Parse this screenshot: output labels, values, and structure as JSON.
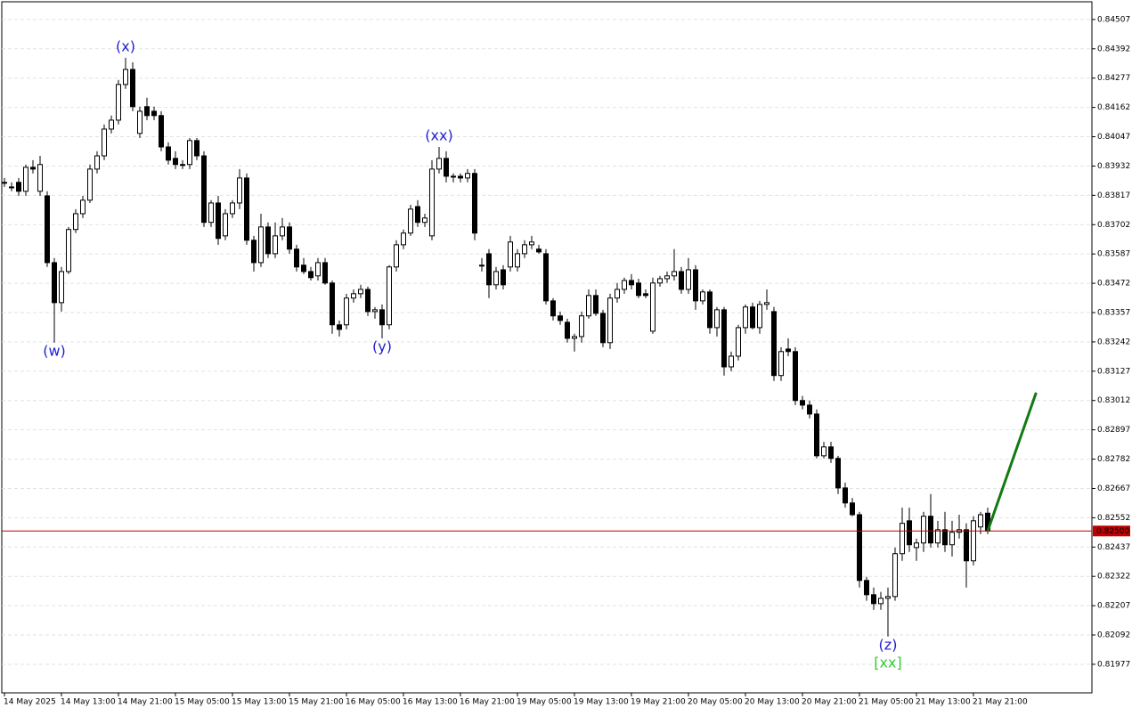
{
  "chart_data": {
    "type": "candlestick",
    "ylim": [
      0.81865,
      0.84573
    ],
    "yticks": [
      0.84507,
      0.84392,
      0.84277,
      0.84162,
      0.84047,
      0.83932,
      0.83817,
      0.83702,
      0.83587,
      0.83472,
      0.83357,
      0.83242,
      0.83127,
      0.83012,
      0.82897,
      0.82782,
      0.82667,
      0.82552,
      0.82437,
      0.82322,
      0.82207,
      0.82092,
      0.81977
    ],
    "grid": true,
    "up_color": "#ffffff",
    "down_color": "#000000",
    "categories": [
      "14 May 2025",
      null,
      null,
      null,
      null,
      null,
      null,
      null,
      "14 May 13:00",
      null,
      null,
      null,
      null,
      null,
      null,
      null,
      "14 May 21:00",
      null,
      null,
      null,
      null,
      null,
      null,
      null,
      "15 May 05:00",
      null,
      null,
      null,
      null,
      null,
      null,
      null,
      "15 May 13:00",
      null,
      null,
      null,
      null,
      null,
      null,
      null,
      "15 May 21:00",
      null,
      null,
      null,
      null,
      null,
      null,
      null,
      "16 May 05:00",
      null,
      null,
      null,
      null,
      null,
      null,
      null,
      "16 May 13:00",
      null,
      null,
      null,
      null,
      null,
      null,
      null,
      "16 May 21:00",
      null,
      null,
      null,
      null,
      null,
      null,
      null,
      "19 May 05:00",
      null,
      null,
      null,
      null,
      null,
      null,
      null,
      "19 May 13:00",
      null,
      null,
      null,
      null,
      null,
      null,
      null,
      "19 May 21:00",
      null,
      null,
      null,
      null,
      null,
      null,
      null,
      "20 May 05:00",
      null,
      null,
      null,
      null,
      null,
      null,
      null,
      "20 May 13:00",
      null,
      null,
      null,
      null,
      null,
      null,
      null,
      "20 May 21:00",
      null,
      null,
      null,
      null,
      null,
      null,
      null,
      "21 May 05:00",
      null,
      null,
      null,
      null,
      null,
      null,
      null,
      "21 May 13:00",
      null,
      null,
      null,
      null,
      null,
      null,
      null,
      "21 May 21:00",
      null,
      null
    ],
    "ohlc": [
      [
        0.83868,
        0.83885,
        0.8385,
        0.83868
      ],
      [
        0.8385,
        0.83868,
        0.83833,
        0.8385
      ],
      [
        0.83868,
        0.83885,
        0.83815,
        0.83833
      ],
      [
        0.83833,
        0.83938,
        0.83815,
        0.83927
      ],
      [
        0.83927,
        0.83955,
        0.83903,
        0.8392
      ],
      [
        0.83833,
        0.83972,
        0.83815,
        0.83938
      ],
      [
        0.83815,
        0.83833,
        0.83536,
        0.83553
      ],
      [
        0.83553,
        0.83571,
        0.83239,
        0.83396
      ],
      [
        0.83396,
        0.83536,
        0.83361,
        0.83518
      ],
      [
        0.83518,
        0.83693,
        0.83508,
        0.83683
      ],
      [
        0.83683,
        0.83763,
        0.83669,
        0.83745
      ],
      [
        0.83745,
        0.83815,
        0.83728,
        0.83798
      ],
      [
        0.83798,
        0.83938,
        0.83787,
        0.8392
      ],
      [
        0.8392,
        0.8399,
        0.83903,
        0.83972
      ],
      [
        0.83972,
        0.84095,
        0.83955,
        0.84077
      ],
      [
        0.84077,
        0.8413,
        0.8406,
        0.84112
      ],
      [
        0.84112,
        0.8427,
        0.84095,
        0.84252
      ],
      [
        0.84252,
        0.84357,
        0.84235,
        0.84311
      ],
      [
        0.84311,
        0.84339,
        0.84147,
        0.84165
      ],
      [
        0.8406,
        0.84165,
        0.84042,
        0.84147
      ],
      [
        0.84165,
        0.842,
        0.84112,
        0.8413
      ],
      [
        0.84147,
        0.84165,
        0.84112,
        0.8413
      ],
      [
        0.8413,
        0.84147,
        0.8399,
        0.84007
      ],
      [
        0.84007,
        0.84025,
        0.83938,
        0.83955
      ],
      [
        0.83962,
        0.8399,
        0.8392,
        0.83938
      ],
      [
        0.83938,
        0.83955,
        0.8392,
        0.83938
      ],
      [
        0.83938,
        0.84042,
        0.8392,
        0.84032
      ],
      [
        0.84032,
        0.84042,
        0.83955,
        0.83972
      ],
      [
        0.83972,
        0.8399,
        0.83693,
        0.83711
      ],
      [
        0.83711,
        0.83798,
        0.83693,
        0.83787
      ],
      [
        0.83787,
        0.83815,
        0.83623,
        0.83648
      ],
      [
        0.83658,
        0.83763,
        0.83641,
        0.83745
      ],
      [
        0.83745,
        0.83798,
        0.83728,
        0.83787
      ],
      [
        0.83787,
        0.8392,
        0.83763,
        0.83885
      ],
      [
        0.83885,
        0.83903,
        0.83623,
        0.83641
      ],
      [
        0.83641,
        0.83658,
        0.83518,
        0.83553
      ],
      [
        0.83553,
        0.83745,
        0.83536,
        0.83693
      ],
      [
        0.83693,
        0.83711,
        0.83571,
        0.83588
      ],
      [
        0.83588,
        0.83711,
        0.83571,
        0.83658
      ],
      [
        0.83658,
        0.83728,
        0.83641,
        0.83693
      ],
      [
        0.83693,
        0.83711,
        0.83588,
        0.83606
      ],
      [
        0.83606,
        0.83623,
        0.83518,
        0.83536
      ],
      [
        0.83543,
        0.83571,
        0.83508,
        0.83518
      ],
      [
        0.83518,
        0.83536,
        0.83483,
        0.83494
      ],
      [
        0.83501,
        0.83571,
        0.83483,
        0.83553
      ],
      [
        0.83553,
        0.83571,
        0.83466,
        0.83473
      ],
      [
        0.83473,
        0.83483,
        0.83274,
        0.83309
      ],
      [
        0.83309,
        0.83326,
        0.83263,
        0.83291
      ],
      [
        0.83309,
        0.83431,
        0.83291,
        0.83414
      ],
      [
        0.83414,
        0.83448,
        0.83396,
        0.83431
      ],
      [
        0.83431,
        0.83466,
        0.83414,
        0.83448
      ],
      [
        0.83448,
        0.83459,
        0.83344,
        0.83361
      ],
      [
        0.83361,
        0.83379,
        0.83333,
        0.83368
      ],
      [
        0.83368,
        0.83389,
        0.83256,
        0.83309
      ],
      [
        0.83309,
        0.83543,
        0.83291,
        0.83536
      ],
      [
        0.83536,
        0.83641,
        0.83518,
        0.83623
      ],
      [
        0.83623,
        0.83683,
        0.83606,
        0.83669
      ],
      [
        0.83669,
        0.8378,
        0.83658,
        0.83763
      ],
      [
        0.83773,
        0.83798,
        0.83693,
        0.83711
      ],
      [
        0.83711,
        0.83745,
        0.83693,
        0.83728
      ],
      [
        0.83658,
        0.83955,
        0.83641,
        0.8392
      ],
      [
        0.8392,
        0.84007,
        0.83903,
        0.83962
      ],
      [
        0.83962,
        0.8399,
        0.83868,
        0.83892
      ],
      [
        0.83892,
        0.83903,
        0.83868,
        0.83892
      ],
      [
        0.83892,
        0.83903,
        0.83868,
        0.83885
      ],
      [
        0.83885,
        0.8392,
        0.83868,
        0.83903
      ],
      [
        0.83903,
        0.8392,
        0.83641,
        0.83669
      ],
      [
        0.83543,
        0.83571,
        0.83518,
        0.83543
      ],
      [
        0.83588,
        0.83606,
        0.83414,
        0.83466
      ],
      [
        0.83466,
        0.83536,
        0.83448,
        0.83518
      ],
      [
        0.83525,
        0.83543,
        0.83448,
        0.83466
      ],
      [
        0.83536,
        0.83658,
        0.83518,
        0.83634
      ],
      [
        0.83536,
        0.83606,
        0.83518,
        0.83588
      ],
      [
        0.83588,
        0.83641,
        0.83571,
        0.83623
      ],
      [
        0.83623,
        0.83658,
        0.83606,
        0.83634
      ],
      [
        0.83606,
        0.83623,
        0.83588,
        0.83595
      ],
      [
        0.83588,
        0.83606,
        0.83389,
        0.83403
      ],
      [
        0.83403,
        0.83414,
        0.83326,
        0.83344
      ],
      [
        0.83344,
        0.83361,
        0.83309,
        0.83326
      ],
      [
        0.83319,
        0.83333,
        0.83239,
        0.83256
      ],
      [
        0.83256,
        0.83274,
        0.83204,
        0.83263
      ],
      [
        0.83263,
        0.83361,
        0.83239,
        0.83344
      ],
      [
        0.83344,
        0.83448,
        0.83333,
        0.83424
      ],
      [
        0.83424,
        0.83448,
        0.83344,
        0.83354
      ],
      [
        0.83354,
        0.83368,
        0.83221,
        0.83239
      ],
      [
        0.83239,
        0.83431,
        0.83214,
        0.83414
      ],
      [
        0.83414,
        0.83473,
        0.83396,
        0.83448
      ],
      [
        0.83448,
        0.83494,
        0.83431,
        0.83483
      ],
      [
        0.83483,
        0.83508,
        0.83448,
        0.83466
      ],
      [
        0.83473,
        0.8349,
        0.83414,
        0.83424
      ],
      [
        0.83431,
        0.83448,
        0.83414,
        0.83424
      ],
      [
        0.83284,
        0.83494,
        0.83274,
        0.83473
      ],
      [
        0.83473,
        0.83501,
        0.83459,
        0.8349
      ],
      [
        0.8349,
        0.83518,
        0.83473,
        0.83501
      ],
      [
        0.83501,
        0.83606,
        0.83483,
        0.83518
      ],
      [
        0.83518,
        0.83536,
        0.83431,
        0.83448
      ],
      [
        0.83448,
        0.83571,
        0.83431,
        0.83525
      ],
      [
        0.83525,
        0.83543,
        0.83368,
        0.83403
      ],
      [
        0.83403,
        0.83448,
        0.83389,
        0.83438
      ],
      [
        0.83438,
        0.83448,
        0.83274,
        0.83298
      ],
      [
        0.83298,
        0.83379,
        0.83263,
        0.83368
      ],
      [
        0.83368,
        0.83379,
        0.8311,
        0.83144
      ],
      [
        0.83144,
        0.83204,
        0.83127,
        0.83186
      ],
      [
        0.83186,
        0.83309,
        0.83169,
        0.83298
      ],
      [
        0.83298,
        0.83389,
        0.83274,
        0.83379
      ],
      [
        0.83379,
        0.83396,
        0.83291,
        0.83298
      ],
      [
        0.83298,
        0.83403,
        0.83274,
        0.83389
      ],
      [
        0.83389,
        0.83448,
        0.83368,
        0.83396
      ],
      [
        0.83361,
        0.83379,
        0.83089,
        0.8311
      ],
      [
        0.8311,
        0.83221,
        0.83089,
        0.83204
      ],
      [
        0.83214,
        0.83256,
        0.83186,
        0.83204
      ],
      [
        0.83204,
        0.83221,
        0.82994,
        0.83012
      ],
      [
        0.83012,
        0.8303,
        0.82977,
        0.82994
      ],
      [
        0.82994,
        0.83012,
        0.82942,
        0.82959
      ],
      [
        0.82959,
        0.82977,
        0.82785,
        0.82795
      ],
      [
        0.82795,
        0.8285,
        0.82785,
        0.8283
      ],
      [
        0.8283,
        0.8285,
        0.82767,
        0.82785
      ],
      [
        0.82785,
        0.82795,
        0.82645,
        0.82669
      ],
      [
        0.82669,
        0.8269,
        0.82592,
        0.8261
      ],
      [
        0.8261,
        0.8263,
        0.82558,
        0.82564
      ],
      [
        0.82564,
        0.82575,
        0.82278,
        0.82306
      ],
      [
        0.82306,
        0.8232,
        0.82226,
        0.8225
      ],
      [
        0.8225,
        0.82278,
        0.82191,
        0.82215
      ],
      [
        0.82215,
        0.82261,
        0.82191,
        0.82236
      ],
      [
        0.82236,
        0.82278,
        0.82086,
        0.82243
      ],
      [
        0.82243,
        0.82435,
        0.82226,
        0.82411
      ],
      [
        0.82411,
        0.82592,
        0.82383,
        0.8253
      ],
      [
        0.8254,
        0.82592,
        0.82418,
        0.82446
      ],
      [
        0.82435,
        0.8247,
        0.82383,
        0.82453
      ],
      [
        0.82453,
        0.82575,
        0.82418,
        0.82558
      ],
      [
        0.82558,
        0.82645,
        0.82435,
        0.82453
      ],
      [
        0.82453,
        0.8254,
        0.82435,
        0.82505
      ],
      [
        0.82505,
        0.82575,
        0.82418,
        0.82446
      ],
      [
        0.82446,
        0.8254,
        0.824,
        0.82495
      ],
      [
        0.82495,
        0.82564,
        0.8247,
        0.82505
      ],
      [
        0.82505,
        0.8253,
        0.82278,
        0.82383
      ],
      [
        0.82383,
        0.82558,
        0.82365,
        0.8254
      ],
      [
        0.82516,
        0.82575,
        0.82488,
        0.82564
      ],
      [
        0.8257,
        0.82592,
        0.82488,
        0.825
      ]
    ],
    "current_price": {
      "value": 0.825,
      "label": "0.82500",
      "color": "#c00000"
    },
    "projection": {
      "color": "#117a11",
      "x": [
        138,
        144.8
      ],
      "y": [
        0.825,
        0.83043
      ]
    },
    "annotations": [
      {
        "text": "(w)",
        "index": 7,
        "position": "below",
        "color": "#2020d0"
      },
      {
        "text": "(x)",
        "index": 17,
        "position": "above",
        "color": "#2020d0"
      },
      {
        "text": "(y)",
        "index": 53,
        "position": "below",
        "color": "#2020d0"
      },
      {
        "text": "(xx)",
        "index": 61,
        "position": "above",
        "color": "#2020d0"
      },
      {
        "text": "(z)",
        "index": 124,
        "position": "below",
        "color": "#2020d0"
      },
      {
        "text": "[xx]",
        "index": 124,
        "position": "below",
        "color": "#33cc33"
      }
    ]
  }
}
